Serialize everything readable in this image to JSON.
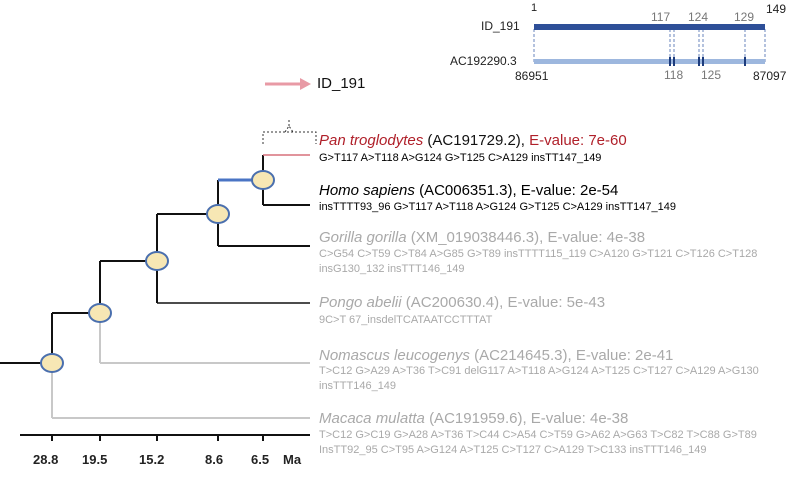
{
  "legend": {
    "label": "ID_191",
    "arrow_color": "#e89aa5"
  },
  "alignment": {
    "query_id": "ID_191",
    "subject_id": "AC192290.3",
    "query_start": "1",
    "query_end": "149",
    "subject_start": "86951",
    "subject_end": "87097",
    "top_marks": [
      "117",
      "124",
      "129"
    ],
    "bottom_marks": [
      "118",
      "125"
    ],
    "query_color": "#2e4f98",
    "subject_color": "#9db7de"
  },
  "species": [
    {
      "name": "Pan troglodytes",
      "accession": "(AC191729.2),",
      "evalue": "E-value: 7e-60",
      "mutations": "G>T117 A>T118 A>G124 G>T125 C>A129 insTT147_149"
    },
    {
      "name": "Homo sapiens",
      "accession": "(AC006351.3),",
      "evalue": "E-value: 2e-54",
      "mutations": "insTTTT93_96 G>T117 A>T118 A>G124 G>T125 C>A129 insTT147_149"
    },
    {
      "name": "Gorilla gorilla",
      "accession": "(XM_019038446.3),",
      "evalue": "E-value: 4e-38",
      "mutations": "C>G54 C>T59 C>T84 A>G85 G>T89 insTTTT115_119 C>A120 G>T121 C>T126 C>T128 insG130_132 insTTT146_149"
    },
    {
      "name": "Pongo abelii",
      "accession": "(AC200630.4),",
      "evalue": "E-value: 5e-43",
      "mutations": "9C>T 67_insdelTCATAATCCTTTAT"
    },
    {
      "name": "Nomascus leucogenys",
      "accession": "(AC214645.3),",
      "evalue": "E-value: 2e-41",
      "mutations": "T>C12 G>A29 A>T36 T>C91 delG117 A>T118 A>G124 A>T125 C>T127 C>A129 A>G130 insTTT146_149"
    },
    {
      "name": "Macaca mulatta",
      "accession": "(AC191959.6),",
      "evalue": "E-value: 4e-38",
      "mutations": "T>C12 G>C19 G>A28 A>T36 T>C44 C>A54 C>T59 G>A62 A>G63 T>C82 T>C88 G>T89 InsTT92_95 C>T95 A>G124 A>T125 C>T127 C>A129 T>C133 insTTT146_149"
    }
  ],
  "axis": {
    "ticks": [
      "28.8",
      "19.5",
      "15.2",
      "8.6",
      "6.5"
    ],
    "unit": "Ma"
  },
  "colors": {
    "node_fill": "#f7e7b4",
    "node_stroke": "#4a6fae",
    "branch_dark": "#111111",
    "branch_gray": "#c8c8c8",
    "branch_blue": "#4a74c4",
    "branch_red": "#d7707c",
    "text_red": "#b0202a",
    "text_gray": "#a9a9a9"
  }
}
